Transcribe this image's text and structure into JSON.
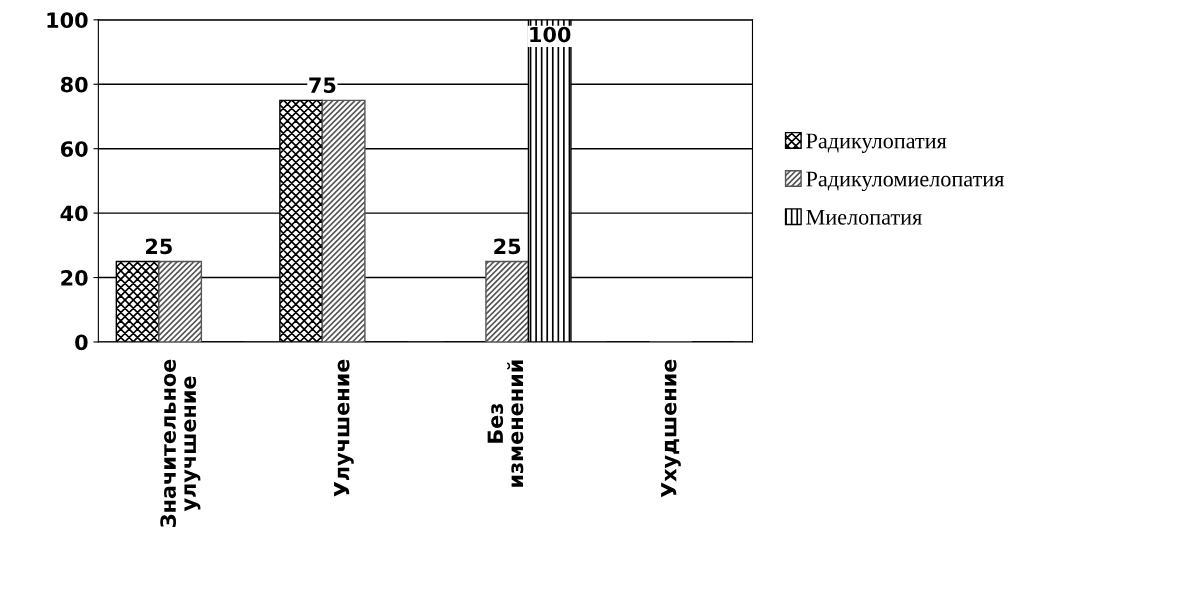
{
  "chart_data": {
    "type": "bar",
    "categories": [
      "Значительное\nулучшение",
      "Улучшение",
      "Без\nизменений",
      "Ухудшение"
    ],
    "series": [
      {
        "name": "Радикулопатия",
        "color": "#000000",
        "values": [
          25,
          75,
          0,
          0
        ],
        "value_labels": [
          "25",
          "75",
          null,
          null
        ]
      },
      {
        "name": "Радикуломиелопатия",
        "color": "#555555",
        "values": [
          25,
          75,
          25,
          0
        ],
        "value_labels": [
          null,
          null,
          "25",
          null
        ]
      },
      {
        "name": "Миелопатия",
        "color": "#000000",
        "values": [
          0,
          0,
          100,
          0
        ],
        "value_labels": [
          null,
          null,
          "100",
          null
        ]
      }
    ],
    "ylim": [
      0,
      100
    ],
    "yticks": [
      0,
      20,
      40,
      60,
      80,
      100
    ],
    "grid": "y",
    "legend": "right"
  }
}
